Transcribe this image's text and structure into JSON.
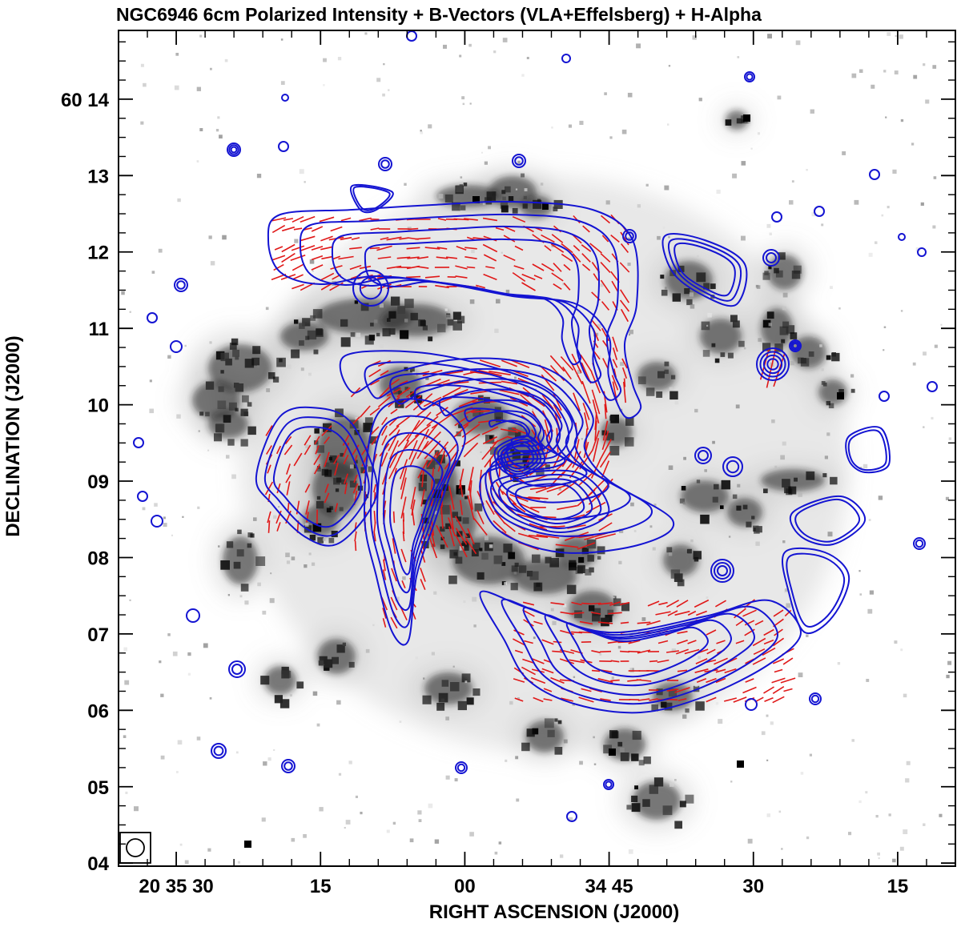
{
  "chart_data": {
    "type": "contour",
    "title": "NGC6946  6cm Polarized Intensity + B-Vectors (VLA+Effelsberg) + H-Alpha",
    "xlabel": "RIGHT ASCENSION (J2000)",
    "ylabel": "DECLINATION (J2000)",
    "x_ticks": [
      {
        "label": "20 35 30",
        "ra_sec": 2130
      },
      {
        "label": "15",
        "ra_sec": 2115
      },
      {
        "label": "00",
        "ra_sec": 2100
      },
      {
        "label": "34 45",
        "ra_sec": 2085
      },
      {
        "label": "30",
        "ra_sec": 2070
      },
      {
        "label": "15",
        "ra_sec": 2055
      }
    ],
    "y_ticks": [
      {
        "label": "60 14",
        "dec_arcmin": 14
      },
      {
        "label": "13",
        "dec_arcmin": 13
      },
      {
        "label": "12",
        "dec_arcmin": 12
      },
      {
        "label": "11",
        "dec_arcmin": 11
      },
      {
        "label": "10",
        "dec_arcmin": 10
      },
      {
        "label": "09",
        "dec_arcmin": 9
      },
      {
        "label": "08",
        "dec_arcmin": 8
      },
      {
        "label": "07",
        "dec_arcmin": 7
      },
      {
        "label": "06",
        "dec_arcmin": 6
      },
      {
        "label": "05",
        "dec_arcmin": 5
      },
      {
        "label": "04",
        "dec_arcmin": 4
      }
    ],
    "xlim_ra_sec": [
      2136,
      2049
    ],
    "ylim_dec_arcmin": [
      3.96,
      14.9
    ],
    "layers": [
      {
        "name": "H-Alpha",
        "style": "greyscale background",
        "color": "#000000"
      },
      {
        "name": "6cm Polarized Intensity",
        "style": "contours",
        "color": "#1414d2"
      },
      {
        "name": "B-Vectors",
        "style": "line segments",
        "color": "#e01818"
      }
    ],
    "beam": {
      "shape": "circle",
      "location": "bottom-left"
    },
    "grid": false
  }
}
